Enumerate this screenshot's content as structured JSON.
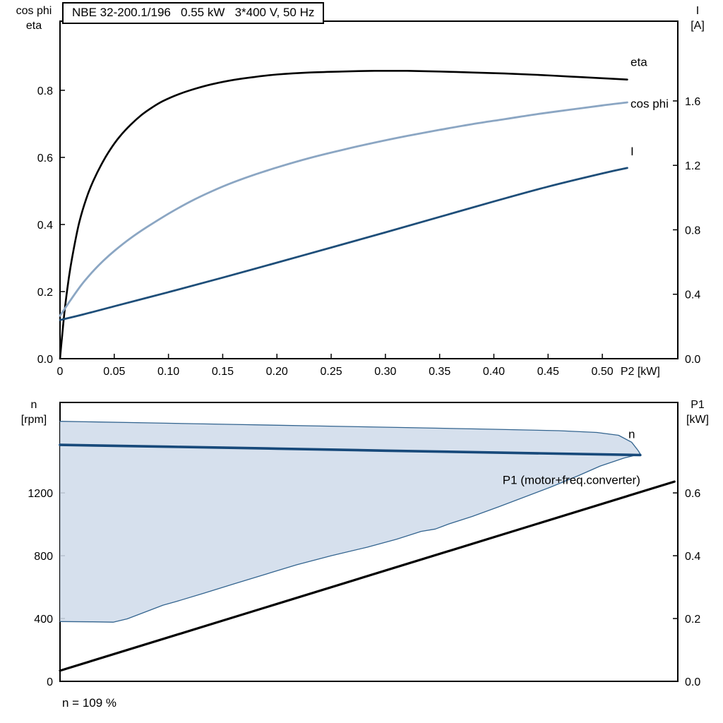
{
  "page": {
    "background": "#ffffff"
  },
  "chart_data": [
    {
      "type": "line",
      "panel": "top",
      "title": "NBE 32-200.1/196   0.55 kW   3*400 V, 50 Hz",
      "xlabel": "P2 [kW]",
      "x_axis": {
        "min": 0,
        "max": 0.5696,
        "ticks": [
          0,
          0.05,
          0.1,
          0.15,
          0.2,
          0.25,
          0.3,
          0.35,
          0.4,
          0.45,
          0.5
        ],
        "tick_labels": [
          "0",
          "0.05",
          "0.10",
          "0.15",
          "0.20",
          "0.25",
          "0.30",
          "0.35",
          "0.40",
          "0.45",
          "0.50"
        ],
        "label": "P2 [kW]",
        "label_x": 0.535
      },
      "y_left": {
        "title_lines": [
          "cos phi",
          "eta"
        ],
        "min": 0,
        "max": 1.006,
        "ticks": [
          0,
          0.2,
          0.4,
          0.6,
          0.8
        ],
        "tick_labels": [
          "0.0",
          "0.2",
          "0.4",
          "0.6",
          "0.8"
        ]
      },
      "y_right": {
        "title_lines": [
          "I",
          "[A]"
        ],
        "min": 0,
        "max": 2.095,
        "ticks": [
          0,
          0.4,
          0.8,
          1.2,
          1.6
        ],
        "tick_labels": [
          "0.0",
          "0.4",
          "0.8",
          "1.2",
          "1.6"
        ]
      },
      "series": [
        {
          "name": "eta",
          "axis": "left",
          "color": "#000000",
          "width": 2.6,
          "smooth": true,
          "label": {
            "text": "eta",
            "x": 0.526,
            "y": 0.872,
            "color": "#000000"
          },
          "points": [
            [
              0,
              0
            ],
            [
              0.002,
              0.07
            ],
            [
              0.004,
              0.135
            ],
            [
              0.007,
              0.215
            ],
            [
              0.01,
              0.28
            ],
            [
              0.014,
              0.35
            ],
            [
              0.018,
              0.41
            ],
            [
              0.024,
              0.475
            ],
            [
              0.03,
              0.525
            ],
            [
              0.038,
              0.578
            ],
            [
              0.046,
              0.622
            ],
            [
              0.055,
              0.662
            ],
            [
              0.065,
              0.697
            ],
            [
              0.075,
              0.726
            ],
            [
              0.085,
              0.749
            ],
            [
              0.095,
              0.768
            ],
            [
              0.11,
              0.789
            ],
            [
              0.125,
              0.805
            ],
            [
              0.14,
              0.818
            ],
            [
              0.16,
              0.831
            ],
            [
              0.18,
              0.84
            ],
            [
              0.2,
              0.847
            ],
            [
              0.23,
              0.853
            ],
            [
              0.26,
              0.856
            ],
            [
              0.29,
              0.858
            ],
            [
              0.32,
              0.858
            ],
            [
              0.35,
              0.856
            ],
            [
              0.38,
              0.853
            ],
            [
              0.41,
              0.85
            ],
            [
              0.44,
              0.846
            ],
            [
              0.47,
              0.841
            ],
            [
              0.5,
              0.836
            ],
            [
              0.523,
              0.832
            ]
          ]
        },
        {
          "name": "cos phi",
          "axis": "left",
          "color": "#8ba6c3",
          "width": 2.8,
          "smooth": true,
          "label": {
            "text": "cos phi",
            "x": 0.526,
            "y": 0.748,
            "color": "#8ba6c3"
          },
          "points": [
            [
              0,
              0.128
            ],
            [
              0.005,
              0.152
            ],
            [
              0.01,
              0.176
            ],
            [
              0.02,
              0.221
            ],
            [
              0.03,
              0.259
            ],
            [
              0.04,
              0.292
            ],
            [
              0.05,
              0.321
            ],
            [
              0.065,
              0.359
            ],
            [
              0.08,
              0.392
            ],
            [
              0.1,
              0.432
            ],
            [
              0.12,
              0.468
            ],
            [
              0.14,
              0.499
            ],
            [
              0.16,
              0.526
            ],
            [
              0.18,
              0.549
            ],
            [
              0.2,
              0.57
            ],
            [
              0.23,
              0.598
            ],
            [
              0.26,
              0.622
            ],
            [
              0.29,
              0.644
            ],
            [
              0.32,
              0.664
            ],
            [
              0.35,
              0.682
            ],
            [
              0.38,
              0.699
            ],
            [
              0.41,
              0.714
            ],
            [
              0.44,
              0.729
            ],
            [
              0.47,
              0.742
            ],
            [
              0.5,
              0.755
            ],
            [
              0.523,
              0.764
            ]
          ]
        },
        {
          "name": "I",
          "axis": "right",
          "color": "#1e4e79",
          "width": 2.8,
          "smooth": true,
          "label": {
            "text": "I",
            "x": 0.526,
            "y": 1.262,
            "color": "#1e4e79"
          },
          "points": [
            [
              0,
              0.24
            ],
            [
              0.02,
              0.272
            ],
            [
              0.05,
              0.325
            ],
            [
              0.1,
              0.413
            ],
            [
              0.15,
              0.503
            ],
            [
              0.2,
              0.596
            ],
            [
              0.25,
              0.69
            ],
            [
              0.3,
              0.784
            ],
            [
              0.35,
              0.88
            ],
            [
              0.4,
              0.976
            ],
            [
              0.45,
              1.068
            ],
            [
              0.5,
              1.15
            ],
            [
              0.523,
              1.184
            ]
          ]
        }
      ]
    },
    {
      "type": "line",
      "panel": "bottom",
      "annotation": "n = 109 %",
      "x_axis": {
        "min": 0,
        "max": 0.5696,
        "ticks": [],
        "tick_labels": [],
        "label": "",
        "label_x": 0
      },
      "y_left": {
        "title_lines": [
          "n",
          "[rpm]"
        ],
        "min": 0,
        "max": 1776,
        "ticks": [
          0,
          400,
          800,
          1200
        ],
        "tick_labels": [
          "0",
          "400",
          "800",
          "1200"
        ]
      },
      "y_right": {
        "title_lines": [
          "P1",
          "[kW]"
        ],
        "min": 0,
        "max": 0.888,
        "ticks": [
          0,
          0.2,
          0.4,
          0.6
        ],
        "tick_labels": [
          "0.0",
          "0.2",
          "0.4",
          "0.6"
        ]
      },
      "series": [
        {
          "name": "speed-range-area",
          "axis": "left",
          "fill": "#d0dcea",
          "fill_opacity": 0.88,
          "upper": "speed-range-max",
          "lower": "speed-range-min"
        },
        {
          "name": "speed-range-max",
          "axis": "left",
          "color": "#33648f",
          "width": 1.3,
          "smooth": false,
          "points": [
            [
              0,
              1656
            ],
            [
              0.08,
              1646
            ],
            [
              0.16,
              1636
            ],
            [
              0.24,
              1626
            ],
            [
              0.32,
              1616
            ],
            [
              0.4,
              1605
            ],
            [
              0.46,
              1596
            ],
            [
              0.495,
              1585
            ],
            [
              0.515,
              1567
            ],
            [
              0.527,
              1523
            ],
            [
              0.533,
              1470
            ],
            [
              0.535,
              1448
            ]
          ]
        },
        {
          "name": "speed-range-min",
          "axis": "left",
          "color": "#33648f",
          "width": 1.3,
          "smooth": false,
          "points": [
            [
              0,
              381
            ],
            [
              0.03,
              379
            ],
            [
              0.049,
              377
            ],
            [
              0.062,
              398
            ],
            [
              0.078,
              440
            ],
            [
              0.095,
              485
            ],
            [
              0.107,
              508
            ],
            [
              0.133,
              562
            ],
            [
              0.16,
              620
            ],
            [
              0.19,
              683
            ],
            [
              0.218,
              742
            ],
            [
              0.25,
              800
            ],
            [
              0.283,
              854
            ],
            [
              0.31,
              904
            ],
            [
              0.333,
              955
            ],
            [
              0.346,
              970
            ],
            [
              0.352,
              985
            ],
            [
              0.358,
              1001
            ],
            [
              0.38,
              1050
            ],
            [
              0.405,
              1113
            ],
            [
              0.452,
              1236
            ],
            [
              0.478,
              1310
            ],
            [
              0.498,
              1371
            ],
            [
              0.52,
              1422
            ],
            [
              0.535,
              1448
            ]
          ]
        },
        {
          "name": "n",
          "axis": "left",
          "color": "#17497a",
          "width": 3.6,
          "smooth": false,
          "label": {
            "text": "n",
            "x": 0.524,
            "y": 1548,
            "color": "#17497a"
          },
          "points": [
            [
              0,
              1506
            ],
            [
              0.1,
              1494
            ],
            [
              0.2,
              1482
            ],
            [
              0.3,
              1469
            ],
            [
              0.4,
              1457
            ],
            [
              0.5,
              1445
            ],
            [
              0.535,
              1441
            ]
          ]
        },
        {
          "name": "P1 (motor+freq.converter)",
          "axis": "right",
          "color": "#000000",
          "width": 3.2,
          "smooth": false,
          "label": {
            "text": "P1 (motor+freq.converter)",
            "x": 0.408,
            "y": 0.628,
            "color": "#000000"
          },
          "points": [
            [
              0,
              0.034
            ],
            [
              0.5665,
              0.636
            ]
          ]
        }
      ]
    }
  ]
}
